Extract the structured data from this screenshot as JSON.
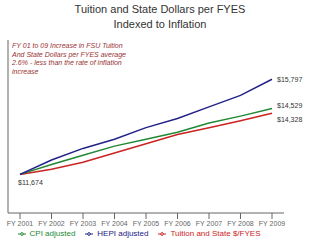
{
  "chart_data": {
    "type": "line",
    "title": "Tuition and State Dollars per FYES",
    "subtitle": "Indexed to Inflation",
    "categories": [
      "FY 2001",
      "FY 2002",
      "FY 2003",
      "FY 2004",
      "FY 2005",
      "FY 2006",
      "FY 2007",
      "FY 2008",
      "FY 2009"
    ],
    "series": [
      {
        "name": "Tuition and State $/FYES",
        "color": "#cc2222",
        "values": [
          11674,
          11900,
          12200,
          12600,
          13000,
          13400,
          13700,
          14000,
          14328
        ],
        "value_labels": [
          "$11,674",
          null,
          null,
          null,
          null,
          null,
          null,
          null,
          "$14,328"
        ]
      },
      {
        "name": "CPI adjusted",
        "color": "#228833",
        "values": [
          11674,
          12100,
          12500,
          12900,
          13200,
          13500,
          13900,
          14200,
          14529
        ],
        "value_labels": [
          null,
          null,
          null,
          null,
          null,
          null,
          null,
          null,
          "$14,529"
        ]
      },
      {
        "name": "HEPI adjusted",
        "color": "#222288",
        "values": [
          11674,
          12300,
          12800,
          13200,
          13700,
          14100,
          14600,
          15100,
          15797
        ],
        "value_labels": [
          null,
          null,
          null,
          null,
          null,
          null,
          null,
          null,
          "$15,797"
        ]
      }
    ],
    "annotations": [
      "FY 01 to 09 Increase in FSU Tuition\nAnd State Dollars per FYES average\n2.6% - less than the rate of inflation\nincrease"
    ],
    "ylim": [
      10000,
      17500
    ],
    "tick_labels": "x",
    "grid": false,
    "legend": "bottom"
  }
}
